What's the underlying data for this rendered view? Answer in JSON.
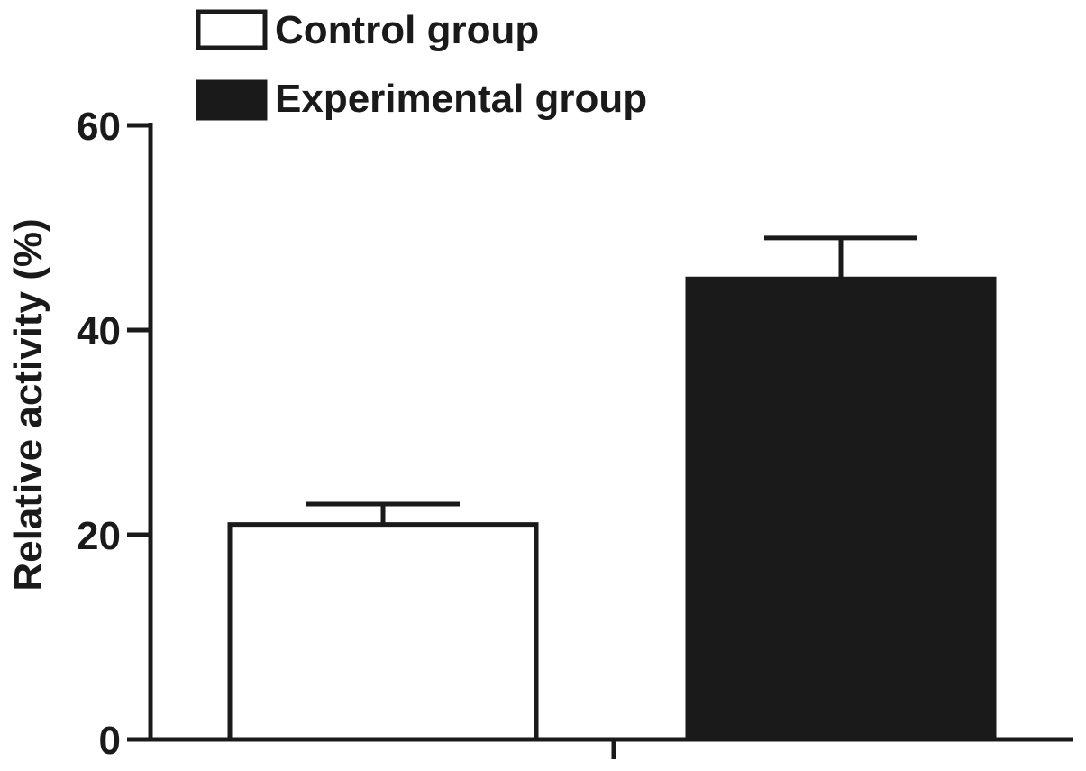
{
  "chart_data": {
    "type": "bar",
    "categories": [
      "Control group",
      "Experimental group"
    ],
    "values": [
      21,
      45
    ],
    "errors": [
      2,
      4
    ],
    "xlabel": "",
    "ylabel": "Relative activity (%)",
    "ylim": [
      0,
      60
    ],
    "yticks": [
      0,
      20,
      40,
      60
    ],
    "ytick_labels": [
      "0",
      "20",
      "40",
      "60"
    ],
    "grid": false,
    "legend_position": "top-left",
    "legend": [
      {
        "label": "Control group",
        "fill": "#ffffff"
      },
      {
        "label": "Experimental group",
        "fill": "#1a1a1a"
      }
    ],
    "colors": {
      "control": "#ffffff",
      "experimental": "#1a1a1a",
      "stroke": "#1a1a1a"
    }
  }
}
